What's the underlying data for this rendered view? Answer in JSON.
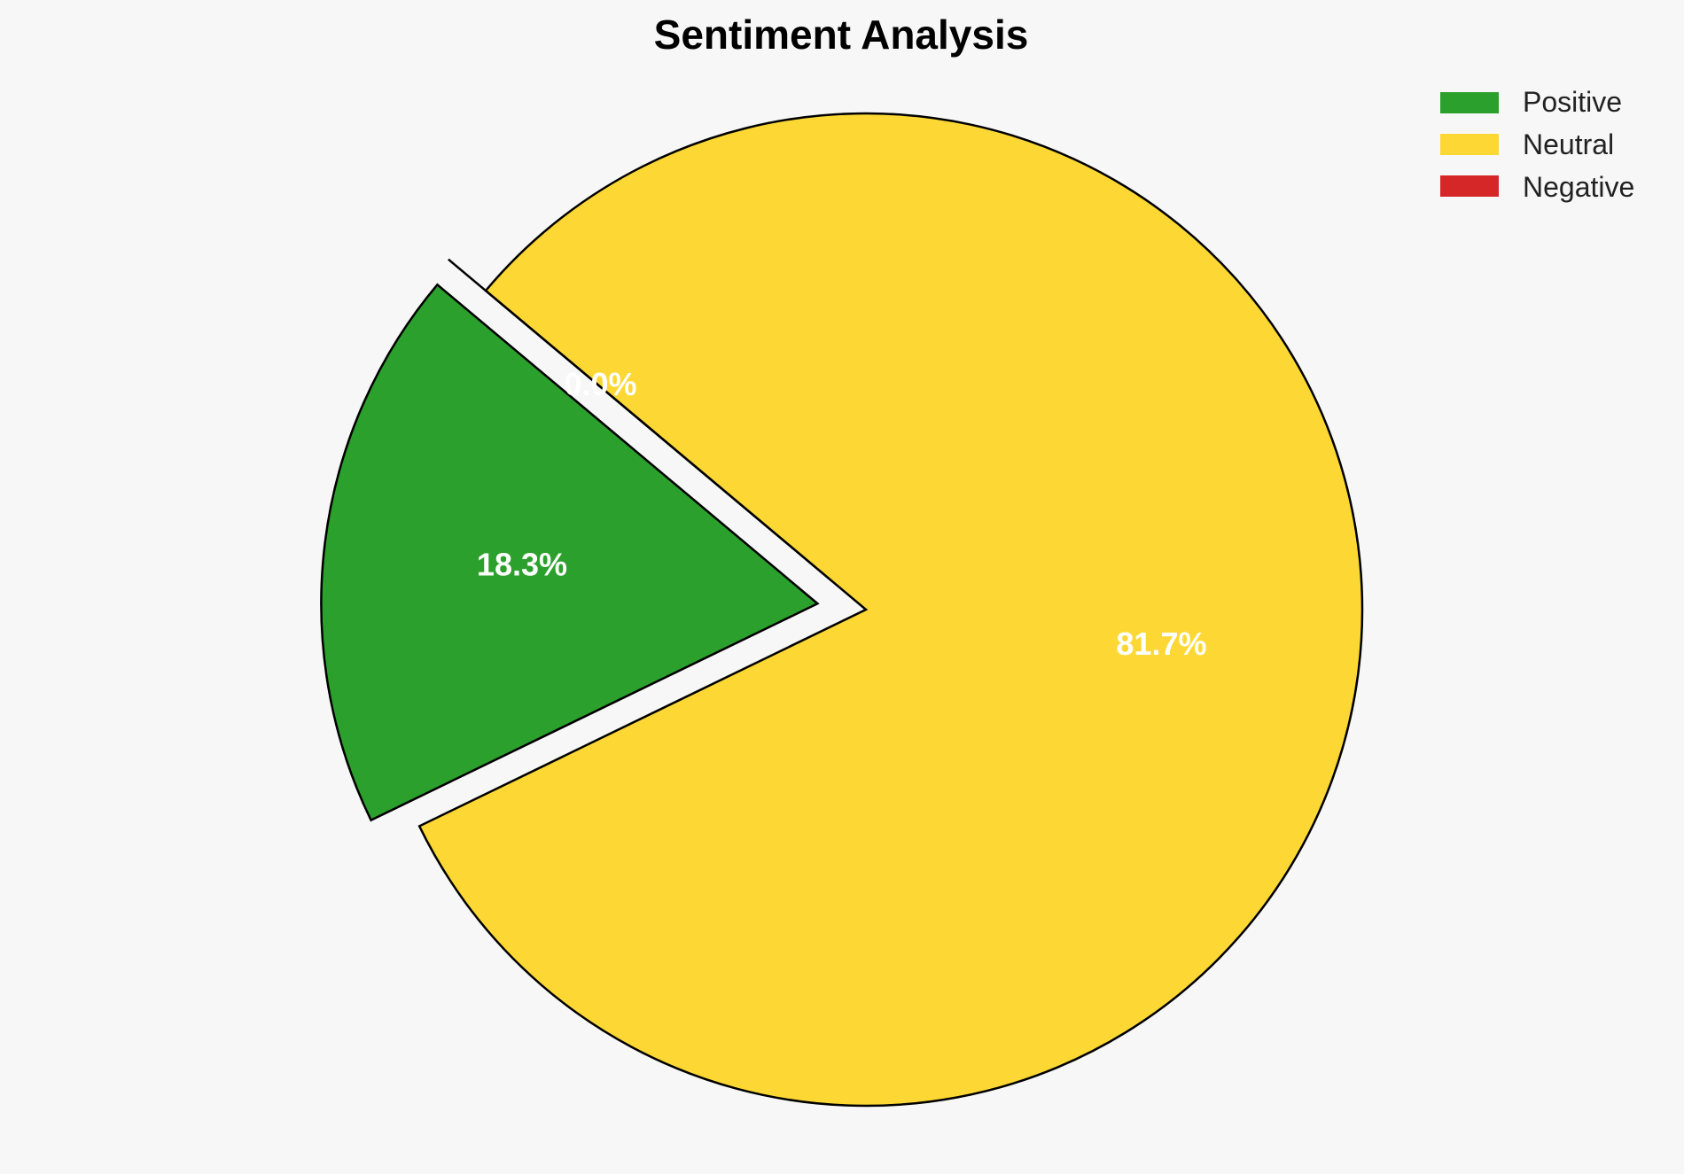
{
  "chart_data": {
    "type": "pie",
    "title": "Sentiment Analysis",
    "categories": [
      "Positive",
      "Neutral",
      "Negative"
    ],
    "values": [
      18.3,
      81.7,
      0.0
    ],
    "value_labels": [
      "18.3%",
      "81.7%",
      "0.0%"
    ],
    "colors": [
      "#2ca02c",
      "#fdd835",
      "#d62728"
    ],
    "exploded": [
      true,
      false,
      true
    ],
    "legend_position": "top-right"
  }
}
